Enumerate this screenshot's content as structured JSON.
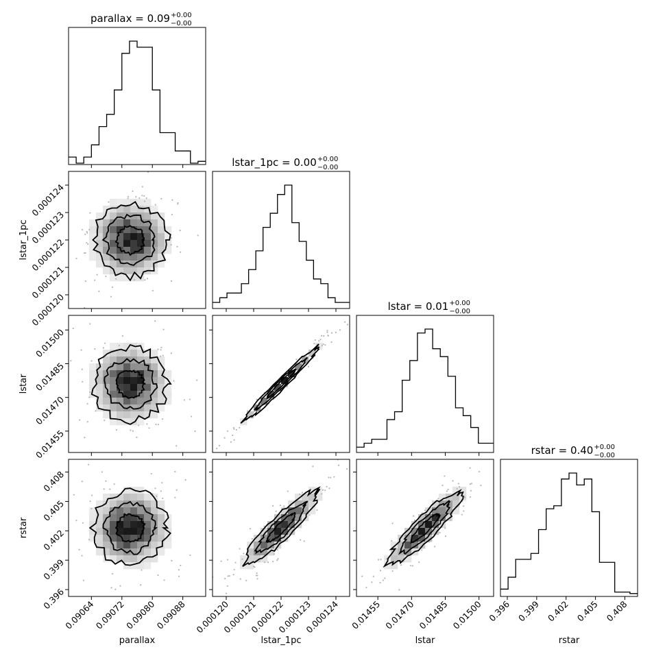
{
  "chart_data": {
    "type": "corner",
    "parameters": [
      {
        "name": "parallax",
        "label": "parallax",
        "title": "parallax = 0.09",
        "title_sup": "+0.00",
        "title_sub": "−0.00",
        "range": [
          0.09058,
          0.09094
        ],
        "ticks": [
          0.09064,
          0.09072,
          0.0908,
          0.09088
        ],
        "tick_labels": [
          "0.09064",
          "0.09072",
          "0.09080",
          "0.09088"
        ],
        "hist": [
          1,
          0,
          1,
          3,
          6,
          8,
          12,
          18,
          20,
          19,
          19,
          12,
          5,
          5,
          2,
          2,
          0,
          0.3
        ]
      },
      {
        "name": "lstar_1pc",
        "label": "lstar_1pc",
        "title": "lstar_1pc = 0.00",
        "title_sup": "+0.00",
        "title_sub": "−0.00",
        "range": [
          0.0001195,
          0.0001245
        ],
        "ticks": [
          0.00012,
          0.000121,
          0.000122,
          0.000123,
          0.000124
        ],
        "tick_labels": [
          "0.000120",
          "0.000121",
          "0.000122",
          "0.000123",
          "0.000124"
        ],
        "hist": [
          1,
          2,
          3,
          3,
          5,
          8,
          12,
          17,
          20,
          24,
          26,
          18,
          14,
          10,
          6,
          5,
          2,
          1,
          1
        ]
      },
      {
        "name": "lstar",
        "label": "lstar",
        "title": "lstar = 0.01",
        "title_sup": "+0.00",
        "title_sub": "−0.00",
        "range": [
          0.014455,
          0.015065
        ],
        "ticks": [
          0.01455,
          0.0147,
          0.01485,
          0.015
        ],
        "tick_labels": [
          "0.01455",
          "0.01470",
          "0.01485",
          "0.01500"
        ],
        "hist": [
          1,
          2,
          3,
          3,
          8,
          10,
          18,
          23,
          30,
          31,
          26,
          24,
          19,
          11,
          9,
          6,
          2,
          2
        ]
      },
      {
        "name": "rstar",
        "label": "rstar",
        "title": "rstar = 0.40",
        "title_sup": "+0.00",
        "title_sub": "−0.00",
        "range": [
          0.3953,
          0.4093
        ],
        "ticks": [
          0.396,
          0.399,
          0.402,
          0.405,
          0.408
        ],
        "tick_labels": [
          "0.396",
          "0.399",
          "0.402",
          "0.405",
          "0.408"
        ],
        "hist": [
          2,
          6,
          12,
          12,
          14,
          22,
          29,
          30,
          39,
          41,
          37,
          39,
          28,
          11,
          11,
          1,
          1,
          0.5
        ]
      }
    ],
    "pairs": [
      {
        "x": "parallax",
        "y": "lstar_1pc",
        "correlation": 0.0
      },
      {
        "x": "parallax",
        "y": "lstar",
        "correlation": 0.0
      },
      {
        "x": "lstar_1pc",
        "y": "lstar",
        "correlation": 0.99
      },
      {
        "x": "parallax",
        "y": "rstar",
        "correlation": 0.0
      },
      {
        "x": "lstar_1pc",
        "y": "rstar",
        "correlation": 0.9
      },
      {
        "x": "lstar",
        "y": "rstar",
        "correlation": 0.9
      }
    ],
    "contour_levels": [
      0.39,
      0.86,
      0.99
    ],
    "grid": false
  }
}
